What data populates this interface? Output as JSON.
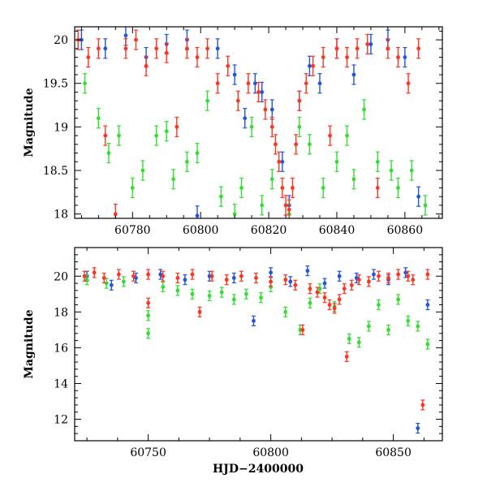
{
  "chart_data": [
    {
      "type": "scatter",
      "panel": "top",
      "xlabel": "",
      "ylabel": "Magnitude",
      "xlim": [
        60763,
        60871
      ],
      "ylim": [
        20.15,
        17.95
      ],
      "y_inverted": true,
      "x_ticks": [
        "60780",
        "60800",
        "60820",
        "60840",
        "60860"
      ],
      "y_ticks": [
        "18",
        "18.5",
        "19",
        "19.5",
        "20"
      ],
      "grid": false,
      "error_bars": true,
      "series": [
        {
          "color": "#2255dd",
          "points": [
            [
              60765,
              20.0
            ],
            [
              60772,
              19.9
            ],
            [
              60778,
              20.05
            ],
            [
              60784,
              19.8
            ],
            [
              60790,
              19.95
            ],
            [
              60796,
              20.0
            ],
            [
              60799,
              17.98
            ],
            [
              60805,
              19.9
            ],
            [
              60810,
              19.6
            ],
            [
              60813,
              19.1
            ],
            [
              60816,
              19.5
            ],
            [
              60818,
              19.4
            ],
            [
              60821,
              19.2
            ],
            [
              60824,
              18.6
            ],
            [
              60826,
              18.1
            ],
            [
              60829,
              19.3
            ],
            [
              60832,
              19.7
            ],
            [
              60835,
              19.5
            ],
            [
              60840,
              19.9
            ],
            [
              60845,
              19.6
            ],
            [
              60850,
              19.95
            ],
            [
              60855,
              20.0
            ],
            [
              60860,
              19.8
            ],
            [
              60864,
              18.2
            ]
          ]
        },
        {
          "color": "#33dd33",
          "points": [
            [
              60766,
              19.5
            ],
            [
              60770,
              19.1
            ],
            [
              60773,
              18.7
            ],
            [
              60776,
              18.9
            ],
            [
              60780,
              18.3
            ],
            [
              60783,
              18.5
            ],
            [
              60787,
              18.9
            ],
            [
              60790,
              18.95
            ],
            [
              60792,
              18.4
            ],
            [
              60796,
              18.6
            ],
            [
              60799,
              18.7
            ],
            [
              60802,
              19.3
            ],
            [
              60806,
              18.2
            ],
            [
              60810,
              18.0
            ],
            [
              60812,
              18.3
            ],
            [
              60815,
              19.0
            ],
            [
              60818,
              18.1
            ],
            [
              60821,
              18.4
            ],
            [
              60826,
              18.0
            ],
            [
              60829,
              19.0
            ],
            [
              60832,
              18.8
            ],
            [
              60836,
              18.3
            ],
            [
              60840,
              18.6
            ],
            [
              60843,
              18.9
            ],
            [
              60845,
              18.4
            ],
            [
              60848,
              19.2
            ],
            [
              60852,
              18.6
            ],
            [
              60856,
              18.5
            ],
            [
              60858,
              18.3
            ],
            [
              60862,
              18.5
            ],
            [
              60866,
              18.1
            ]
          ]
        },
        {
          "color": "#ff3322",
          "points": [
            [
              60764,
              20.0
            ],
            [
              60767,
              19.8
            ],
            [
              60770,
              19.9
            ],
            [
              60772,
              18.9
            ],
            [
              60775,
              18.0
            ],
            [
              60778,
              19.9
            ],
            [
              60781,
              20.0
            ],
            [
              60784,
              19.7
            ],
            [
              60787,
              19.9
            ],
            [
              60790,
              19.85
            ],
            [
              60793,
              19.0
            ],
            [
              60796,
              19.9
            ],
            [
              60799,
              19.8
            ],
            [
              60802,
              19.9
            ],
            [
              60805,
              19.5
            ],
            [
              60808,
              19.7
            ],
            [
              60811,
              19.3
            ],
            [
              60814,
              19.5
            ],
            [
              60817,
              19.4
            ],
            [
              60819,
              19.2
            ],
            [
              60821,
              19.0
            ],
            [
              60822,
              18.8
            ],
            [
              60823,
              18.6
            ],
            [
              60824,
              18.3
            ],
            [
              60825,
              18.1
            ],
            [
              60826,
              18.05
            ],
            [
              60827,
              18.3
            ],
            [
              60828,
              18.8
            ],
            [
              60829,
              19.3
            ],
            [
              60831,
              19.5
            ],
            [
              60833,
              19.7
            ],
            [
              60836,
              19.8
            ],
            [
              60838,
              18.9
            ],
            [
              60840,
              19.9
            ],
            [
              60843,
              19.8
            ],
            [
              60846,
              19.9
            ],
            [
              60849,
              19.95
            ],
            [
              60852,
              18.3
            ],
            [
              60855,
              19.9
            ],
            [
              60858,
              19.8
            ],
            [
              60861,
              19.5
            ],
            [
              60864,
              19.9
            ]
          ]
        }
      ]
    },
    {
      "type": "scatter",
      "panel": "bottom",
      "xlabel": "HJD−2400000",
      "ylabel": "Magnitude",
      "xlim": [
        60720,
        60870
      ],
      "ylim": [
        21.6,
        10.8
      ],
      "y_inverted": true,
      "x_ticks": [
        "60750",
        "60800",
        "60850"
      ],
      "y_ticks": [
        "12",
        "14",
        "16",
        "18",
        "20"
      ],
      "grid": false,
      "error_bars": true,
      "series": [
        {
          "color": "#2255dd",
          "points": [
            [
              60725,
              20.0
            ],
            [
              60735,
              19.5
            ],
            [
              60745,
              19.9
            ],
            [
              60755,
              20.1
            ],
            [
              60765,
              19.8
            ],
            [
              60775,
              20.0
            ],
            [
              60785,
              19.9
            ],
            [
              60793,
              17.5
            ],
            [
              60800,
              20.2
            ],
            [
              60808,
              19.7
            ],
            [
              60815,
              20.3
            ],
            [
              60822,
              19.6
            ],
            [
              60828,
              20.0
            ],
            [
              60835,
              19.9
            ],
            [
              60842,
              20.1
            ],
            [
              60848,
              19.8
            ],
            [
              60855,
              20.2
            ],
            [
              60860,
              11.5
            ],
            [
              60864,
              18.4
            ]
          ]
        },
        {
          "color": "#33dd33",
          "points": [
            [
              60725,
              19.8
            ],
            [
              60733,
              19.6
            ],
            [
              60740,
              19.7
            ],
            [
              60750,
              16.8
            ],
            [
              60750,
              17.8
            ],
            [
              60756,
              19.4
            ],
            [
              60762,
              19.2
            ],
            [
              60768,
              19.0
            ],
            [
              60775,
              18.9
            ],
            [
              60780,
              19.1
            ],
            [
              60785,
              18.7
            ],
            [
              60790,
              19.0
            ],
            [
              60796,
              18.8
            ],
            [
              60800,
              19.4
            ],
            [
              60806,
              18.0
            ],
            [
              60812,
              17.0
            ],
            [
              60816,
              18.5
            ],
            [
              60820,
              19.3
            ],
            [
              60826,
              18.3
            ],
            [
              60832,
              16.5
            ],
            [
              60836,
              16.3
            ],
            [
              60840,
              17.2
            ],
            [
              60844,
              18.4
            ],
            [
              60848,
              17.0
            ],
            [
              60852,
              18.7
            ],
            [
              60856,
              17.5
            ],
            [
              60860,
              17.2
            ],
            [
              60864,
              16.2
            ]
          ]
        },
        {
          "color": "#ff3322",
          "points": [
            [
              60724,
              20.0
            ],
            [
              60728,
              20.2
            ],
            [
              60732,
              19.9
            ],
            [
              60738,
              20.1
            ],
            [
              60744,
              20.0
            ],
            [
              60750,
              20.1
            ],
            [
              60750,
              18.5
            ],
            [
              60756,
              20.0
            ],
            [
              60762,
              19.9
            ],
            [
              60768,
              20.1
            ],
            [
              60771,
              18.0
            ],
            [
              60776,
              20.0
            ],
            [
              60782,
              19.8
            ],
            [
              60788,
              20.0
            ],
            [
              60794,
              19.9
            ],
            [
              60800,
              19.7
            ],
            [
              60806,
              19.8
            ],
            [
              60810,
              19.5
            ],
            [
              60813,
              17.0
            ],
            [
              60816,
              19.3
            ],
            [
              60819,
              19.1
            ],
            [
              60822,
              18.8
            ],
            [
              60824,
              18.4
            ],
            [
              60826,
              18.2
            ],
            [
              60828,
              18.7
            ],
            [
              60830,
              19.3
            ],
            [
              60831,
              15.5
            ],
            [
              60833,
              19.5
            ],
            [
              60836,
              19.8
            ],
            [
              60840,
              19.7
            ],
            [
              60844,
              20.0
            ],
            [
              60848,
              19.9
            ],
            [
              60852,
              20.1
            ],
            [
              60856,
              20.0
            ],
            [
              60858,
              19.8
            ],
            [
              60862,
              12.8
            ],
            [
              60864,
              20.1
            ]
          ]
        }
      ]
    }
  ]
}
